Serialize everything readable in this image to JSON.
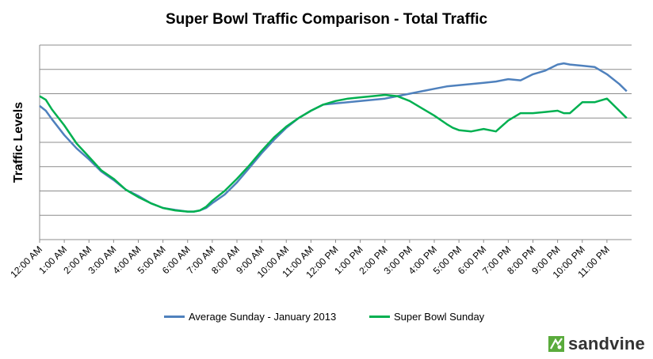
{
  "chart_data": {
    "type": "line",
    "title": "Super Bowl Traffic Comparison - Total Traffic",
    "xlabel": "",
    "ylabel": "Traffic Levels",
    "x_tick_labels": [
      "12:00 AM",
      "1:00 AM",
      "2:00 AM",
      "3:00 AM",
      "4:00 AM",
      "5:00 AM",
      "6:00 AM",
      "7:00 AM",
      "8:00 AM",
      "9:00 AM",
      "10:00 AM",
      "11:00 AM",
      "12:00 PM",
      "1:00 PM",
      "2:00 PM",
      "3:00 PM",
      "4:00 PM",
      "5:00 PM",
      "6:00 PM",
      "7:00 PM",
      "8:00 PM",
      "9:00 PM",
      "10:00 PM",
      "11:00 PM"
    ],
    "y_ticks_labeled": false,
    "ylim": [
      0,
      8
    ],
    "grid": true,
    "legend_position": "bottom",
    "series": [
      {
        "name": "Average Sunday - January 2013",
        "color": "#4f81bd",
        "x": [
          0,
          0.25,
          0.5,
          1,
          1.5,
          2,
          2.5,
          3,
          3.5,
          4,
          4.5,
          5,
          5.5,
          6,
          6.25,
          6.5,
          6.75,
          7,
          7.5,
          8,
          8.5,
          9,
          9.5,
          10,
          10.5,
          11,
          11.5,
          12,
          12.5,
          13,
          13.5,
          14,
          14.5,
          15,
          15.5,
          16,
          16.5,
          17,
          17.5,
          18,
          18.5,
          19,
          19.5,
          20,
          20.5,
          21,
          21.25,
          21.5,
          22,
          22.5,
          23,
          23.5,
          23.8
        ],
        "y": [
          5.5,
          5.3,
          4.95,
          4.3,
          3.75,
          3.3,
          2.8,
          2.45,
          2.05,
          1.8,
          1.5,
          1.3,
          1.22,
          1.15,
          1.15,
          1.2,
          1.3,
          1.5,
          1.85,
          2.35,
          2.95,
          3.55,
          4.1,
          4.6,
          5.0,
          5.3,
          5.55,
          5.6,
          5.65,
          5.7,
          5.75,
          5.8,
          5.9,
          6.0,
          6.1,
          6.2,
          6.3,
          6.35,
          6.4,
          6.45,
          6.5,
          6.6,
          6.55,
          6.8,
          6.95,
          7.2,
          7.25,
          7.2,
          7.15,
          7.1,
          6.8,
          6.4,
          6.1
        ]
      },
      {
        "name": "Super Bowl Sunday",
        "color": "#00b050",
        "x": [
          0,
          0.25,
          0.5,
          1,
          1.5,
          2,
          2.5,
          3,
          3.5,
          4,
          4.5,
          5,
          5.5,
          6,
          6.25,
          6.5,
          6.75,
          7,
          7.5,
          8,
          8.5,
          9,
          9.5,
          10,
          10.5,
          11,
          11.5,
          12,
          12.5,
          13,
          13.5,
          14,
          14.5,
          15,
          15.5,
          16,
          16.5,
          16.75,
          17,
          17.5,
          18,
          18.5,
          19,
          19.5,
          20,
          20.5,
          21,
          21.25,
          21.5,
          22,
          22.5,
          23,
          23.5,
          23.8
        ],
        "y": [
          5.9,
          5.75,
          5.35,
          4.7,
          3.95,
          3.4,
          2.85,
          2.5,
          2.05,
          1.75,
          1.5,
          1.3,
          1.2,
          1.15,
          1.15,
          1.2,
          1.35,
          1.6,
          2.0,
          2.5,
          3.05,
          3.65,
          4.2,
          4.65,
          5.0,
          5.3,
          5.55,
          5.7,
          5.8,
          5.85,
          5.9,
          5.95,
          5.9,
          5.7,
          5.4,
          5.1,
          4.75,
          4.6,
          4.5,
          4.45,
          4.55,
          4.45,
          4.9,
          5.2,
          5.2,
          5.25,
          5.3,
          5.2,
          5.2,
          5.65,
          5.65,
          5.8,
          5.3,
          5.0
        ]
      }
    ]
  },
  "legend": {
    "avg_label": "Average Sunday - January 2013",
    "sb_label": "Super Bowl Sunday"
  },
  "brand": {
    "name": "sandvine",
    "icon": "sandvine-logo-icon",
    "color": "#5aab3c"
  }
}
